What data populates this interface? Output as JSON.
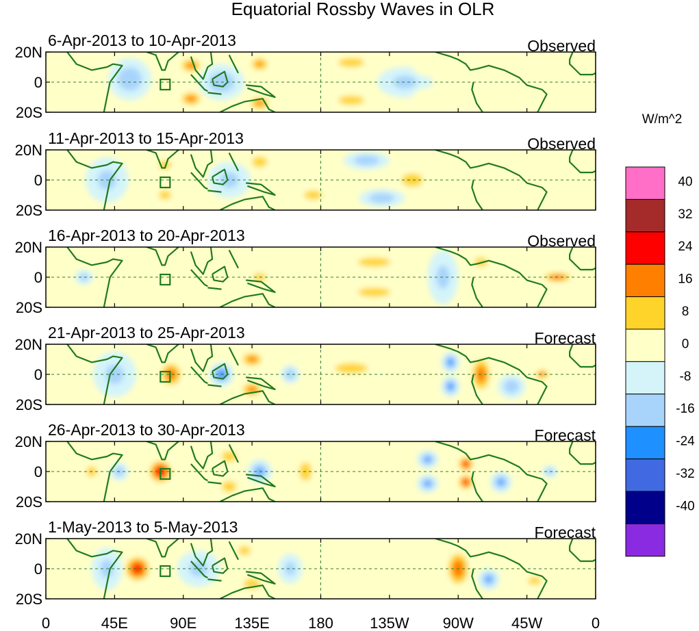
{
  "chart_data": {
    "type": "heatmap",
    "title": "Equatorial Rossby Waves in OLR",
    "units": "W/m^2",
    "x_range": [
      0,
      360
    ],
    "y_range": [
      -20,
      20
    ],
    "x_ticks": [
      "0",
      "45E",
      "90E",
      "135E",
      "180",
      "135W",
      "90W",
      "45W",
      "0"
    ],
    "y_ticks": [
      "20N",
      "0",
      "20S"
    ],
    "colorbar": {
      "levels": [
        "40",
        "32",
        "24",
        "16",
        "8",
        "0",
        "-8",
        "-16",
        "-24",
        "-32",
        "-40"
      ],
      "colors": [
        "#ff6ec7",
        "#a52a2a",
        "#ff0000",
        "#ff7f00",
        "#ffd42a",
        "#ffffc8",
        "#d4f4fa",
        "#a8d4fc",
        "#1e90ff",
        "#4169e1",
        "#00008b",
        "#8a2be2"
      ]
    },
    "panels": [
      {
        "period": "6-Apr-2013 to 10-Apr-2013",
        "kind": "Observed",
        "anomalies": [
          {
            "lon": 55,
            "lat": 2,
            "val": -14,
            "slon": 14,
            "slat": 14
          },
          {
            "lon": 115,
            "lat": 0,
            "val": -14,
            "slon": 15,
            "slat": 12
          },
          {
            "lon": 95,
            "lat": 11,
            "val": 20,
            "slon": 9,
            "slat": 6
          },
          {
            "lon": 95,
            "lat": -11,
            "val": 20,
            "slon": 9,
            "slat": 6
          },
          {
            "lon": 140,
            "lat": 12,
            "val": 18,
            "slon": 8,
            "slat": 6
          },
          {
            "lon": 140,
            "lat": -14,
            "val": 18,
            "slon": 9,
            "slat": 6
          },
          {
            "lon": 200,
            "lat": 13,
            "val": 10,
            "slon": 20,
            "slat": 7
          },
          {
            "lon": 200,
            "lat": -12,
            "val": 10,
            "slon": 20,
            "slat": 7
          },
          {
            "lon": 235,
            "lat": 0,
            "val": -10,
            "slon": 18,
            "slat": 10
          },
          {
            "lon": 255,
            "lat": 10,
            "val": 8,
            "slon": 15,
            "slat": 7
          },
          {
            "lon": 255,
            "lat": -10,
            "val": 8,
            "slon": 15,
            "slat": 7
          },
          {
            "lon": 10,
            "lat": 0,
            "val": 4,
            "slon": 15,
            "slat": 18
          },
          {
            "lon": 355,
            "lat": 0,
            "val": 8,
            "slon": 8,
            "slat": 8
          }
        ]
      },
      {
        "period": "11-Apr-2013 to 15-Apr-2013",
        "kind": "Observed",
        "anomalies": [
          {
            "lon": 40,
            "lat": 0,
            "val": -10,
            "slon": 14,
            "slat": 15
          },
          {
            "lon": 78,
            "lat": 10,
            "val": 12,
            "slon": 8,
            "slat": 6
          },
          {
            "lon": 78,
            "lat": -10,
            "val": 12,
            "slon": 8,
            "slat": 6
          },
          {
            "lon": 120,
            "lat": 0,
            "val": -10,
            "slon": 14,
            "slat": 12
          },
          {
            "lon": 140,
            "lat": 12,
            "val": 12,
            "slon": 10,
            "slat": 7
          },
          {
            "lon": 175,
            "lat": -10,
            "val": 12,
            "slon": 12,
            "slat": 6
          },
          {
            "lon": 210,
            "lat": 13,
            "val": -14,
            "slon": 15,
            "slat": 6
          },
          {
            "lon": 220,
            "lat": -12,
            "val": -14,
            "slon": 15,
            "slat": 6
          },
          {
            "lon": 240,
            "lat": 0,
            "val": 10,
            "slon": 16,
            "slat": 10
          },
          {
            "lon": 355,
            "lat": 0,
            "val": 8,
            "slon": 12,
            "slat": 8
          }
        ]
      },
      {
        "period": "16-Apr-2013 to 20-Apr-2013",
        "kind": "Observed",
        "anomalies": [
          {
            "lon": 25,
            "lat": 0,
            "val": -12,
            "slon": 6,
            "slat": 5
          },
          {
            "lon": 60,
            "lat": 6,
            "val": 6,
            "slon": 18,
            "slat": 12
          },
          {
            "lon": 110,
            "lat": 0,
            "val": 8,
            "slon": 12,
            "slat": 8
          },
          {
            "lon": 140,
            "lat": 0,
            "val": 10,
            "slon": 10,
            "slat": 6
          },
          {
            "lon": 215,
            "lat": 10,
            "val": 10,
            "slon": 25,
            "slat": 7
          },
          {
            "lon": 215,
            "lat": -10,
            "val": 10,
            "slon": 25,
            "slat": 7
          },
          {
            "lon": 260,
            "lat": 0,
            "val": -10,
            "slon": 10,
            "slat": 18
          },
          {
            "lon": 285,
            "lat": 10,
            "val": 10,
            "slon": 10,
            "slat": 7
          },
          {
            "lon": 335,
            "lat": 0,
            "val": 24,
            "slon": 12,
            "slat": 4
          }
        ]
      },
      {
        "period": "21-Apr-2013 to 25-Apr-2013",
        "kind": "Forecast",
        "anomalies": [
          {
            "lon": 45,
            "lat": 0,
            "val": -10,
            "slon": 14,
            "slat": 15
          },
          {
            "lon": 82,
            "lat": 0,
            "val": 22,
            "slon": 9,
            "slat": 10
          },
          {
            "lon": 115,
            "lat": 0,
            "val": -22,
            "slon": 8,
            "slat": 8
          },
          {
            "lon": 135,
            "lat": 10,
            "val": 20,
            "slon": 9,
            "slat": 6
          },
          {
            "lon": 135,
            "lat": -10,
            "val": 20,
            "slon": 9,
            "slat": 6
          },
          {
            "lon": 160,
            "lat": 0,
            "val": -16,
            "slon": 6,
            "slat": 6
          },
          {
            "lon": 200,
            "lat": 4,
            "val": 10,
            "slon": 25,
            "slat": 8
          },
          {
            "lon": 265,
            "lat": 8,
            "val": -20,
            "slon": 6,
            "slat": 7
          },
          {
            "lon": 265,
            "lat": -8,
            "val": -20,
            "slon": 6,
            "slat": 7
          },
          {
            "lon": 285,
            "lat": 0,
            "val": 22,
            "slon": 8,
            "slat": 14
          },
          {
            "lon": 305,
            "lat": -8,
            "val": -14,
            "slon": 9,
            "slat": 8
          },
          {
            "lon": 325,
            "lat": 0,
            "val": 22,
            "slon": 6,
            "slat": 4
          }
        ]
      },
      {
        "period": "26-Apr-2013 to 30-Apr-2013",
        "kind": "Forecast",
        "anomalies": [
          {
            "lon": 30,
            "lat": 0,
            "val": 10,
            "slon": 8,
            "slat": 8
          },
          {
            "lon": 48,
            "lat": 0,
            "val": -14,
            "slon": 6,
            "slat": 6
          },
          {
            "lon": 75,
            "lat": 0,
            "val": 32,
            "slon": 9,
            "slat": 9
          },
          {
            "lon": 120,
            "lat": 10,
            "val": 16,
            "slon": 8,
            "slat": 6
          },
          {
            "lon": 120,
            "lat": -10,
            "val": 16,
            "slon": 8,
            "slat": 6
          },
          {
            "lon": 140,
            "lat": 0,
            "val": -18,
            "slon": 8,
            "slat": 8
          },
          {
            "lon": 170,
            "lat": 0,
            "val": 12,
            "slon": 8,
            "slat": 12
          },
          {
            "lon": 250,
            "lat": 8,
            "val": -18,
            "slon": 7,
            "slat": 6
          },
          {
            "lon": 250,
            "lat": -8,
            "val": -18,
            "slon": 7,
            "slat": 6
          },
          {
            "lon": 275,
            "lat": 5,
            "val": 28,
            "slon": 6,
            "slat": 6
          },
          {
            "lon": 275,
            "lat": -7,
            "val": 28,
            "slon": 6,
            "slat": 6
          },
          {
            "lon": 298,
            "lat": -7,
            "val": -18,
            "slon": 7,
            "slat": 7
          },
          {
            "lon": 330,
            "lat": 0,
            "val": -14,
            "slon": 5,
            "slat": 4
          }
        ]
      },
      {
        "period": "1-May-2013 to 5-May-2013",
        "kind": "Forecast",
        "anomalies": [
          {
            "lon": 60,
            "lat": 0,
            "val": 30,
            "slon": 10,
            "slat": 10
          },
          {
            "lon": 40,
            "lat": 0,
            "val": -10,
            "slon": 10,
            "slat": 14
          },
          {
            "lon": 100,
            "lat": 0,
            "val": -10,
            "slon": 14,
            "slat": 12
          },
          {
            "lon": 130,
            "lat": 12,
            "val": 12,
            "slon": 8,
            "slat": 6
          },
          {
            "lon": 135,
            "lat": -10,
            "val": 14,
            "slon": 10,
            "slat": 6
          },
          {
            "lon": 160,
            "lat": 0,
            "val": -10,
            "slon": 8,
            "slat": 10
          },
          {
            "lon": 200,
            "lat": 0,
            "val": 6,
            "slon": 20,
            "slat": 10
          },
          {
            "lon": 270,
            "lat": 0,
            "val": 24,
            "slon": 9,
            "slat": 14
          },
          {
            "lon": 290,
            "lat": -7,
            "val": -18,
            "slon": 7,
            "slat": 7
          },
          {
            "lon": 320,
            "lat": -8,
            "val": 10,
            "slon": 10,
            "slat": 6
          }
        ]
      }
    ]
  }
}
